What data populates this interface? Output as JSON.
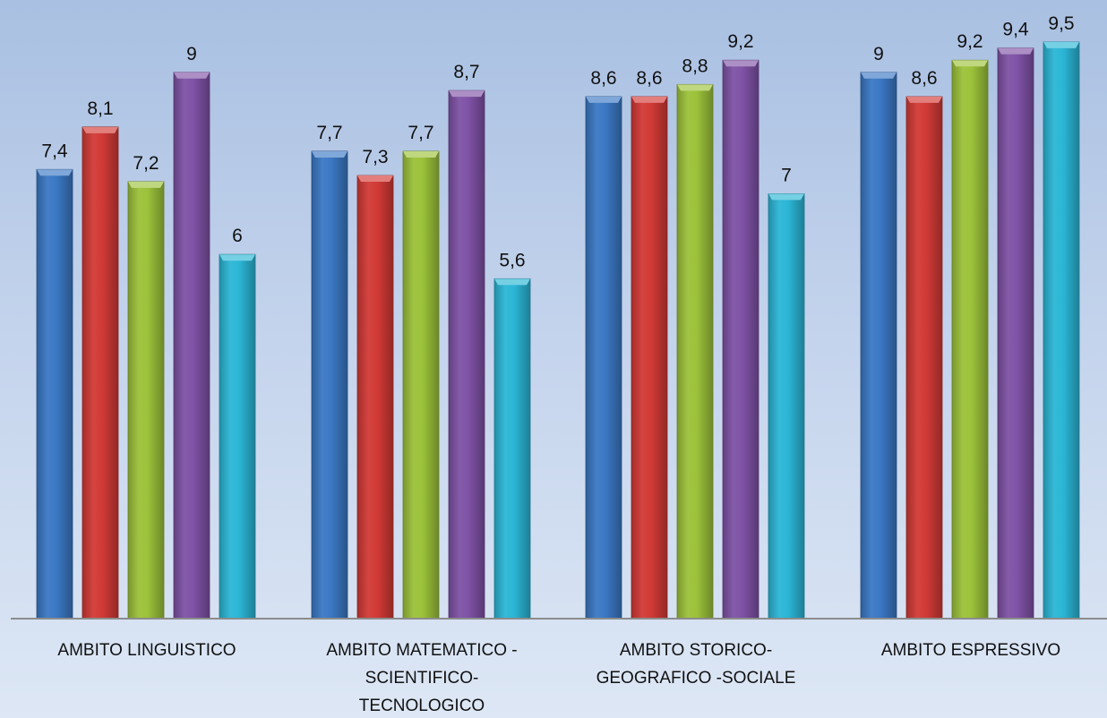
{
  "chart_data": {
    "type": "bar",
    "title": "",
    "xlabel": "",
    "ylabel": "",
    "ylim": [
      0,
      9.5
    ],
    "grid": false,
    "legend": "none",
    "categories": [
      [
        "AMBITO LINGUISTICO"
      ],
      [
        "AMBITO MATEMATICO -",
        "SCIENTIFICO-",
        "TECNOLOGICO"
      ],
      [
        "AMBITO STORICO-",
        "GEOGRAFICO -SOCIALE"
      ],
      [
        "AMBITO ESPRESSIVO"
      ]
    ],
    "series": [
      {
        "color": "#3b78c4",
        "values": [
          7.4,
          7.7,
          8.6,
          9
        ],
        "labels": [
          "7,4",
          "7,7",
          "8,6",
          "9"
        ]
      },
      {
        "color": "#d23a36",
        "values": [
          8.1,
          7.3,
          8.6,
          8.6
        ],
        "labels": [
          "8,1",
          "7,3",
          "8,6",
          "8,6"
        ]
      },
      {
        "color": "#9cc23a",
        "values": [
          7.2,
          7.7,
          8.8,
          9.2
        ],
        "labels": [
          "7,2",
          "7,7",
          "8,8",
          "9,2"
        ]
      },
      {
        "color": "#7f52a6",
        "values": [
          9,
          8.7,
          9.2,
          9.4
        ],
        "labels": [
          "9",
          "8,7",
          "9,2",
          "9,4"
        ]
      },
      {
        "color": "#2bb6d6",
        "values": [
          6,
          5.6,
          7,
          9.5
        ],
        "labels": [
          "6",
          "5,6",
          "7",
          "9,5"
        ]
      }
    ]
  }
}
